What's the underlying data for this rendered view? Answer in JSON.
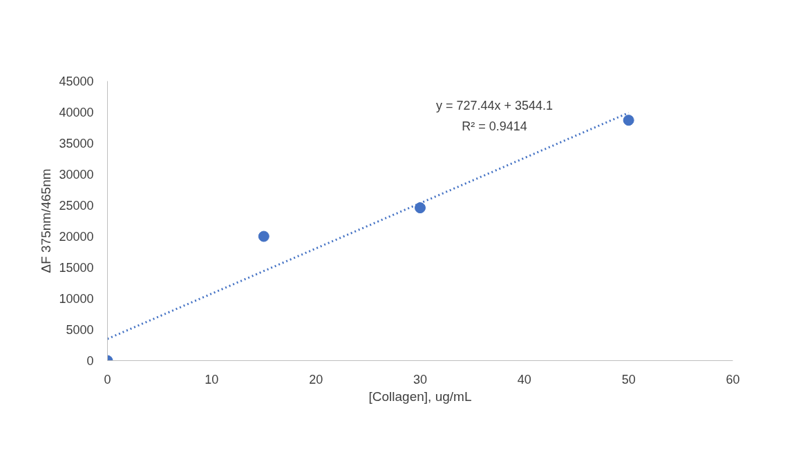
{
  "chart_data": {
    "type": "scatter",
    "xlabel": "[Collagen], ug/mL",
    "ylabel": "ΔF 375nm/465nm",
    "x": [
      0,
      15,
      30,
      50
    ],
    "series": [
      {
        "color": "#4472c4",
        "values": [
          0,
          20000,
          24600,
          38700
        ],
        "marker": "circle"
      },
      {
        "type": "line",
        "color": "#4472c4",
        "x": [
          0,
          50
        ],
        "values": [
          3500,
          39900
        ],
        "line_style": "dotted",
        "marker": "none"
      }
    ],
    "xlim": [
      0,
      60
    ],
    "ylim": [
      0,
      45000
    ],
    "xticks": [
      0,
      10,
      20,
      30,
      40,
      50,
      60
    ],
    "yticks": [
      0,
      5000,
      10000,
      15000,
      20000,
      25000,
      30000,
      35000,
      40000,
      45000
    ],
    "grid": false,
    "annotations": [
      "y = 727.44x + 3544.1",
      "R² = 0.9414"
    ]
  }
}
